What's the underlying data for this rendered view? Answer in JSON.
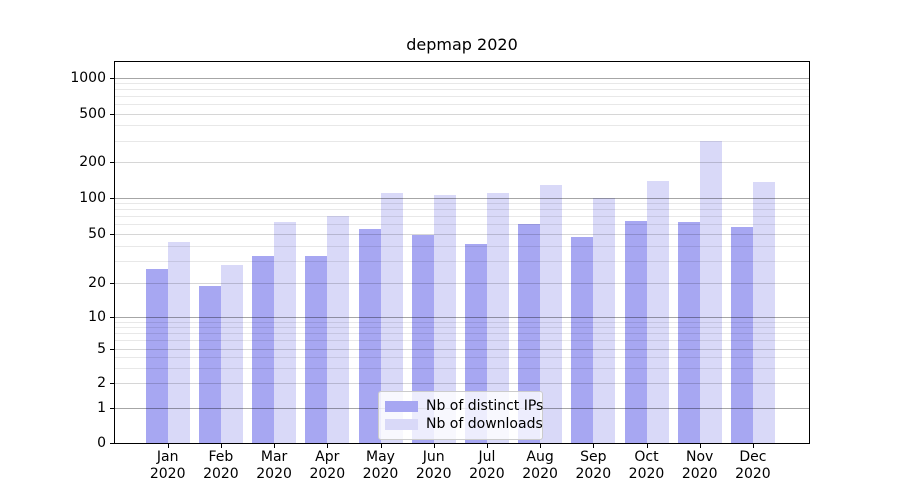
{
  "chart_data": {
    "type": "bar",
    "title": "depmap 2020",
    "categories": [
      "Jan 2020",
      "Feb 2020",
      "Mar 2020",
      "Apr 2020",
      "May 2020",
      "Jun 2020",
      "Jul 2020",
      "Aug 2020",
      "Sep 2020",
      "Oct 2020",
      "Nov 2020",
      "Dec 2020"
    ],
    "series": [
      {
        "name": "Nb of distinct IPs",
        "color": "#a7a7f2",
        "values": [
          26,
          19,
          33,
          33,
          55,
          49,
          41,
          60,
          47,
          64,
          63,
          57
        ]
      },
      {
        "name": "Nb of downloads",
        "color": "#d9d9f8",
        "values": [
          43,
          28,
          62,
          70,
          110,
          105,
          110,
          128,
          100,
          140,
          300,
          135
        ]
      }
    ],
    "xlabel": "",
    "ylabel": "",
    "yscale": "symlog",
    "yticks": [
      0,
      1,
      2,
      5,
      10,
      20,
      50,
      100,
      200,
      500,
      1000
    ],
    "ytick_labels": [
      "0",
      "1",
      "2",
      "5",
      "10",
      "20",
      "50",
      "100",
      "200",
      "500",
      "1000"
    ],
    "ylim": [
      0,
      1500
    ],
    "grid": "both",
    "legend_position": "lower center"
  },
  "colors": {
    "background": "#ffffff",
    "spine": "#000000",
    "grid_major": "rgba(0,0,0,0.35)",
    "grid_mid": "rgba(0,0,0,0.16)",
    "grid_minor": "rgba(0,0,0,0.09)",
    "legend_border": "#cccccc"
  }
}
